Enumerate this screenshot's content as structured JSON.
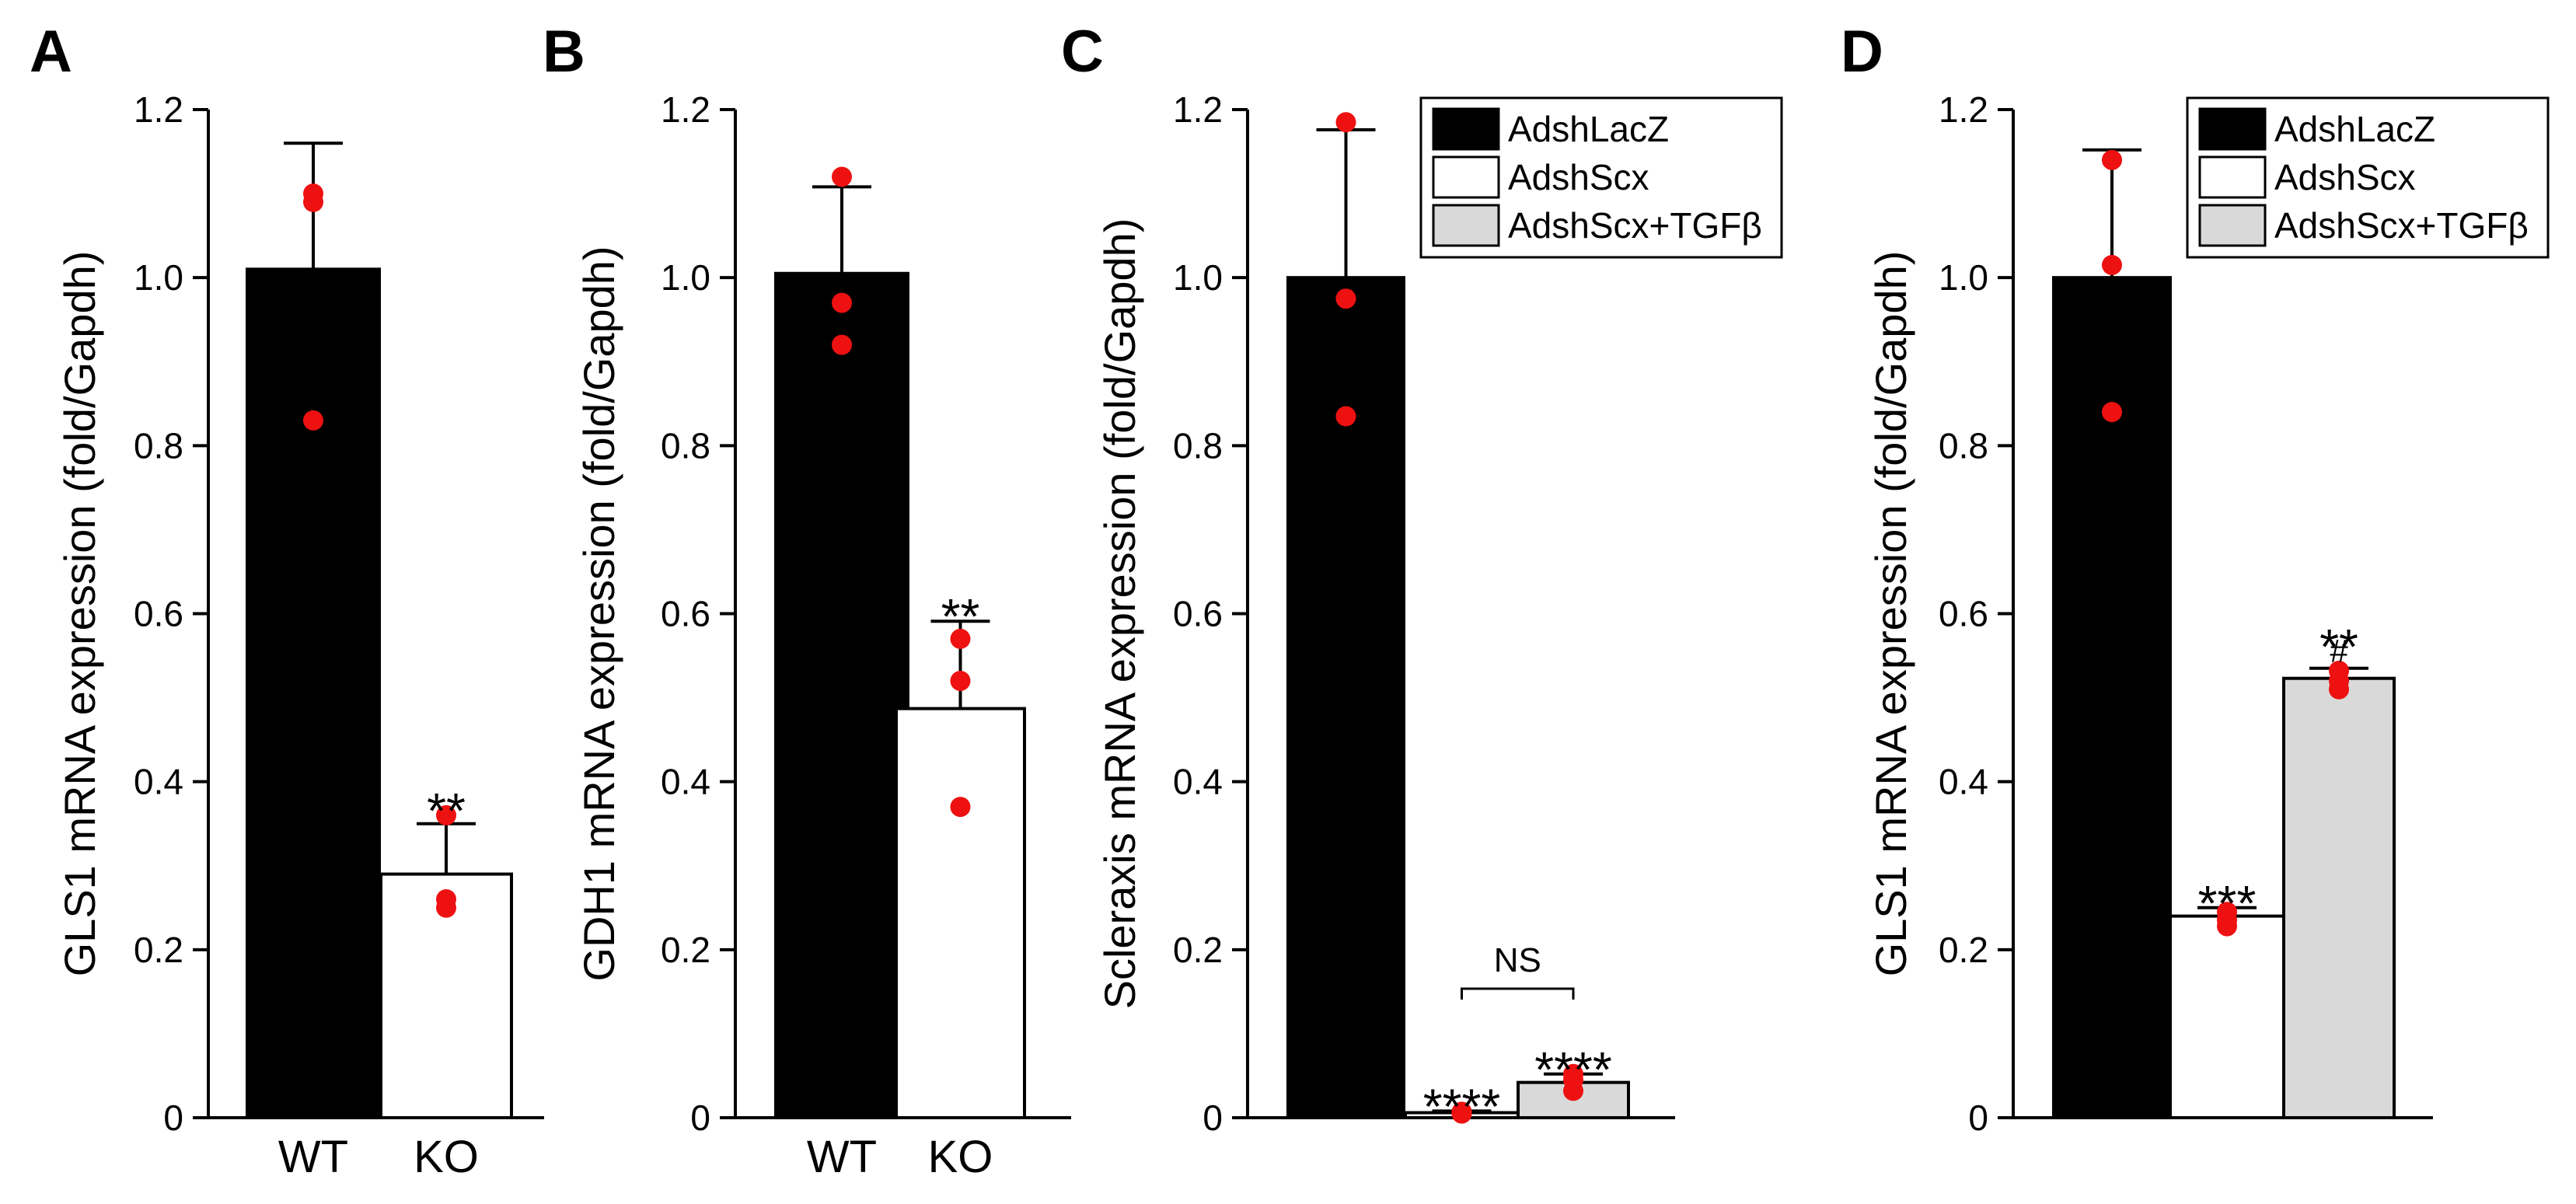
{
  "colors": {
    "black_bar": "#000000",
    "white_bar": "#ffffff",
    "gray_bar": "#d9d9d9",
    "dots": "#ee1111",
    "axis": "#000000"
  },
  "chart_data": [
    {
      "panel": "A",
      "type": "bar",
      "title": "",
      "xlabel": "",
      "ylabel": "GLS1 mRNA expression (fold/Gapdh)",
      "ylim": [
        0,
        1.2
      ],
      "yticks": [
        "0",
        "0.2",
        "0.4",
        "0.6",
        "0.8",
        "1.0",
        "1.2"
      ],
      "categories": [
        "WT",
        "KO"
      ],
      "values": [
        1.01,
        0.29
      ],
      "errors": [
        0.15,
        0.06
      ],
      "fills": [
        "black",
        "white"
      ],
      "points": [
        [
          1.1,
          1.09,
          0.83
        ],
        [
          0.36,
          0.26,
          0.25
        ]
      ],
      "significance": [
        "",
        "**"
      ],
      "significance_sub": [
        "",
        ""
      ],
      "legend": []
    },
    {
      "panel": "B",
      "type": "bar",
      "title": "",
      "xlabel": "",
      "ylabel": "GDH1 mRNA expression (fold/Gapdh)",
      "ylim": [
        0,
        1.2
      ],
      "yticks": [
        "0",
        "0.2",
        "0.4",
        "0.6",
        "0.8",
        "1.0",
        "1.2"
      ],
      "categories": [
        "WT",
        "KO"
      ],
      "values": [
        1.005,
        0.487
      ],
      "errors": [
        0.103,
        0.104
      ],
      "fills": [
        "black",
        "white"
      ],
      "points": [
        [
          1.12,
          0.97,
          0.92
        ],
        [
          0.57,
          0.52,
          0.37
        ]
      ],
      "significance": [
        "",
        "**"
      ],
      "significance_sub": [
        "",
        ""
      ],
      "legend": []
    },
    {
      "panel": "C",
      "type": "bar",
      "title": "",
      "xlabel": "",
      "ylabel": "Scleraxis mRNA expression (fold/Gapdh)",
      "ylim": [
        0,
        1.2
      ],
      "yticks": [
        "0",
        "0.2",
        "0.4",
        "0.6",
        "0.8",
        "1.0",
        "1.2"
      ],
      "categories": [
        "",
        "",
        ""
      ],
      "values": [
        1.0,
        0.006,
        0.042
      ],
      "errors": [
        0.176,
        0.002,
        0.01
      ],
      "fills": [
        "black",
        "white",
        "gray"
      ],
      "points": [
        [
          1.185,
          0.975,
          0.835
        ],
        [
          0.007,
          0.006,
          0.005
        ],
        [
          0.052,
          0.045,
          0.032
        ]
      ],
      "significance": [
        "",
        "****",
        "****"
      ],
      "significance_sub": [
        "",
        "",
        ""
      ],
      "bracket": {
        "from": 1,
        "to": 2,
        "label": "NS",
        "y": 0.16
      },
      "legend": [
        "AdshLacZ",
        "AdshScx",
        "AdshScx+TGFβ"
      ]
    },
    {
      "panel": "D",
      "type": "bar",
      "title": "",
      "xlabel": "",
      "ylabel": "GLS1 mRNA expression (fold/Gapdh)",
      "ylim": [
        0,
        1.2
      ],
      "yticks": [
        "0",
        "0.2",
        "0.4",
        "0.6",
        "0.8",
        "1.0",
        "1.2"
      ],
      "categories": [
        "",
        "",
        ""
      ],
      "values": [
        1.0,
        0.24,
        0.523
      ],
      "errors": [
        0.152,
        0.01,
        0.012
      ],
      "fills": [
        "black",
        "white",
        "gray"
      ],
      "points": [
        [
          1.14,
          1.015,
          0.84
        ],
        [
          0.245,
          0.235,
          0.228
        ],
        [
          0.532,
          0.52,
          0.51
        ]
      ],
      "significance": [
        "",
        "***",
        "**"
      ],
      "significance_sub": [
        "",
        "",
        "#"
      ],
      "legend": [
        "AdshLacZ",
        "AdshScx",
        "AdshScx+TGFβ"
      ]
    }
  ]
}
